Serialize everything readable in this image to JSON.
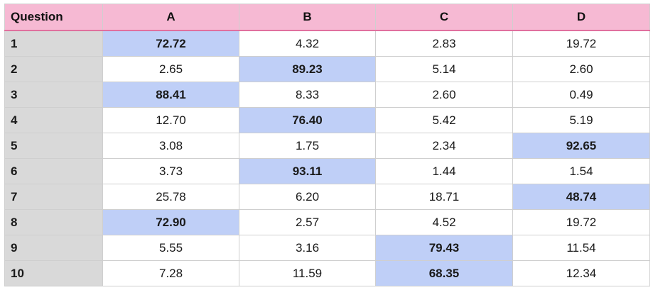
{
  "header": {
    "question": "Question",
    "columns": [
      "A",
      "B",
      "C",
      "D"
    ]
  },
  "colors": {
    "header_bg": "#f6b9d3",
    "header_border": "#e0709e",
    "question_col_bg": "#d9d9d9",
    "highlight_bg": "#bfcff7"
  },
  "rows": [
    {
      "q": "1",
      "values": [
        "72.72",
        "4.32",
        "2.83",
        "19.72"
      ],
      "max": 0
    },
    {
      "q": "2",
      "values": [
        "2.65",
        "89.23",
        "5.14",
        "2.60"
      ],
      "max": 1
    },
    {
      "q": "3",
      "values": [
        "88.41",
        "8.33",
        "2.60",
        "0.49"
      ],
      "max": 0
    },
    {
      "q": "4",
      "values": [
        "12.70",
        "76.40",
        "5.42",
        "5.19"
      ],
      "max": 1
    },
    {
      "q": "5",
      "values": [
        "3.08",
        "1.75",
        "2.34",
        "92.65"
      ],
      "max": 3
    },
    {
      "q": "6",
      "values": [
        "3.73",
        "93.11",
        "1.44",
        "1.54"
      ],
      "max": 1
    },
    {
      "q": "7",
      "values": [
        "25.78",
        "6.20",
        "18.71",
        "48.74"
      ],
      "max": 3
    },
    {
      "q": "8",
      "values": [
        "72.90",
        "2.57",
        "4.52",
        "19.72"
      ],
      "max": 0
    },
    {
      "q": "9",
      "values": [
        "5.55",
        "3.16",
        "79.43",
        "11.54"
      ],
      "max": 2
    },
    {
      "q": "10",
      "values": [
        "7.28",
        "11.59",
        "68.35",
        "12.34"
      ],
      "max": 2
    }
  ]
}
